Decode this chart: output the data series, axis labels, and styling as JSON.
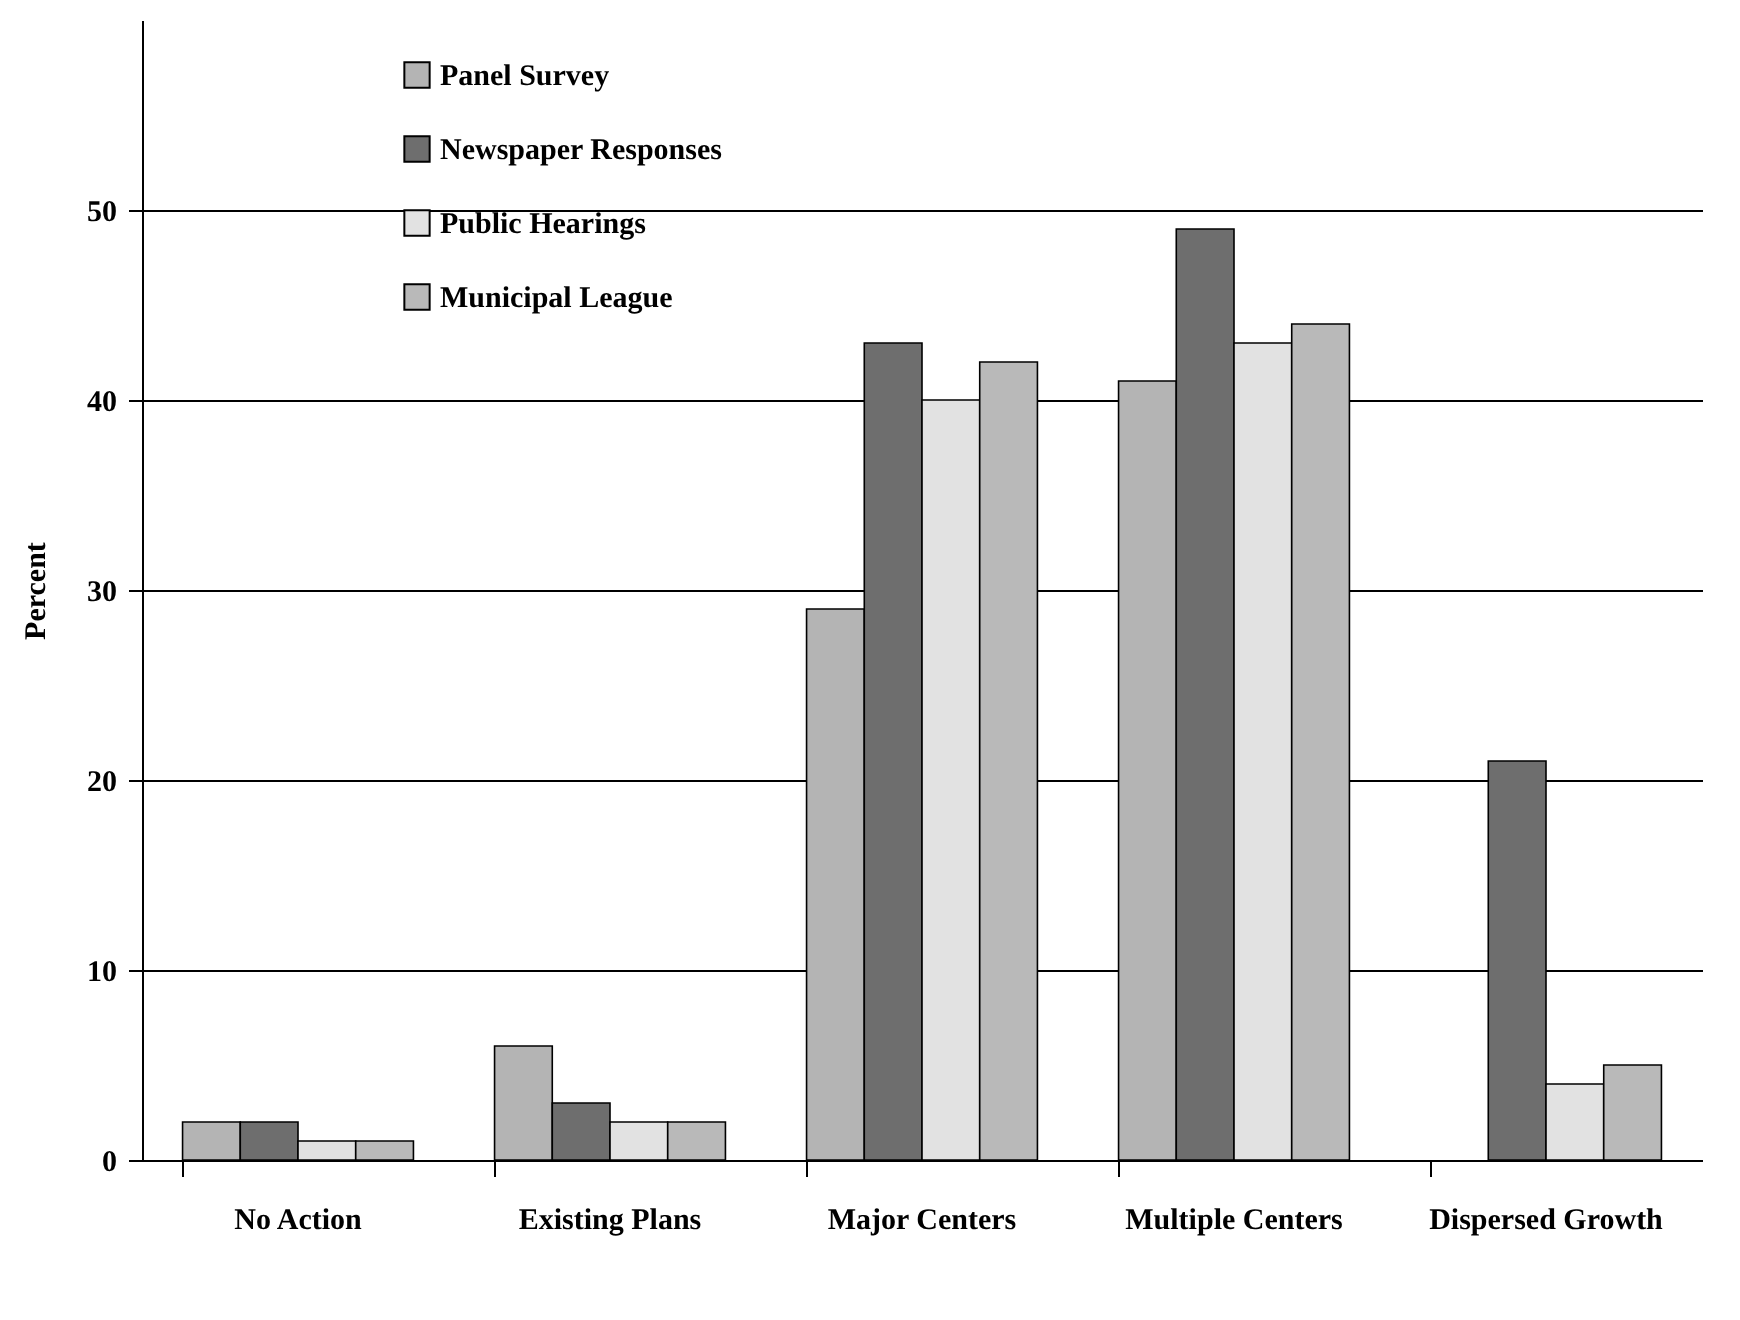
{
  "chart_data": {
    "type": "bar",
    "ylabel": "Percent",
    "categories": [
      "No Action",
      "Existing Plans",
      "Major Centers",
      "Multiple Centers",
      "Dispersed Growth"
    ],
    "series": [
      {
        "name": "Panel Survey",
        "color": "#b4b4b4",
        "values": [
          2,
          6,
          29,
          41,
          null
        ]
      },
      {
        "name": "Newspaper Responses",
        "color": "#6e6e6e",
        "values": [
          2,
          3,
          43,
          49,
          21
        ]
      },
      {
        "name": "Public Hearings",
        "color": "#e2e2e2",
        "values": [
          1,
          2,
          40,
          43,
          4
        ]
      },
      {
        "name": "Municipal League",
        "color": "#b9b9b9",
        "values": [
          1,
          2,
          42,
          44,
          5
        ]
      }
    ],
    "ylim": [
      0,
      60
    ],
    "yticks": [
      0,
      10,
      20,
      30,
      40,
      50
    ],
    "grid": "y",
    "legend": "top left"
  }
}
